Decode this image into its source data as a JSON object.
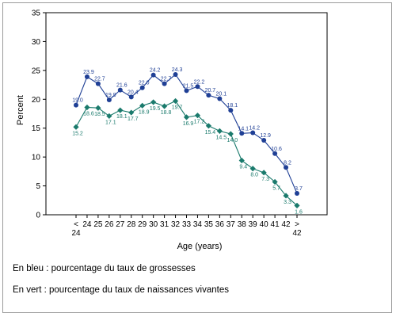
{
  "chart_data": {
    "type": "line",
    "xlabel": "Age (years)",
    "ylabel": "Percent",
    "ylim": [
      0,
      35
    ],
    "yticks": [
      0,
      5,
      10,
      15,
      20,
      25,
      30,
      35
    ],
    "grid": false,
    "categories": [
      [
        "<",
        "24"
      ],
      [
        "24"
      ],
      [
        "25"
      ],
      [
        "26"
      ],
      [
        "27"
      ],
      [
        "28"
      ],
      [
        "29"
      ],
      [
        "30"
      ],
      [
        "31"
      ],
      [
        "32"
      ],
      [
        "33"
      ],
      [
        "34"
      ],
      [
        "35"
      ],
      [
        "36"
      ],
      [
        "37"
      ],
      [
        "38"
      ],
      [
        "39"
      ],
      [
        "40"
      ],
      [
        "41"
      ],
      [
        "42"
      ],
      [
        ">",
        "42"
      ]
    ],
    "series": [
      {
        "color": "#1f3f95",
        "marker": "circle",
        "values": [
          19.0,
          23.9,
          22.7,
          19.9,
          21.6,
          20.4,
          22.0,
          24.2,
          22.7,
          24.3,
          21.5,
          22.2,
          20.7,
          20.1,
          18.1,
          14.1,
          14.2,
          12.9,
          10.6,
          8.2,
          3.7
        ],
        "labels": [
          "19.0",
          "23.9",
          "22.7",
          "19.9",
          "21.6",
          "20.4",
          "22.0",
          "24.2",
          "22.7",
          "24.3",
          "21.5",
          "22.2",
          "20.7",
          "20.1",
          "18.1",
          "14.1",
          "14.2",
          "12.9",
          "10.6",
          "8.2",
          "3.7"
        ]
      },
      {
        "color": "#1a7a6c",
        "marker": "diamond",
        "values": [
          15.2,
          18.6,
          18.5,
          17.1,
          18.1,
          17.7,
          18.9,
          19.5,
          18.8,
          19.7,
          16.9,
          17.2,
          15.4,
          14.5,
          14.0,
          9.4,
          8.0,
          7.3,
          5.7,
          3.3,
          1.6
        ],
        "labels": [
          "15.2",
          "18.6",
          "18.5",
          "17.1",
          "18.1",
          "17.7",
          "18.9",
          "19.5",
          "18.8",
          "19.7",
          "16.9",
          "17.2",
          "15.4",
          "14.5",
          "14.0",
          "9.4",
          "8.0",
          "7.3",
          "5.7",
          "3.3",
          "1.6"
        ]
      }
    ]
  },
  "captions": {
    "blue": "En bleu : pourcentage du taux de grossesses",
    "green": "En vert : pourcentage du taux de naissances vivantes"
  }
}
